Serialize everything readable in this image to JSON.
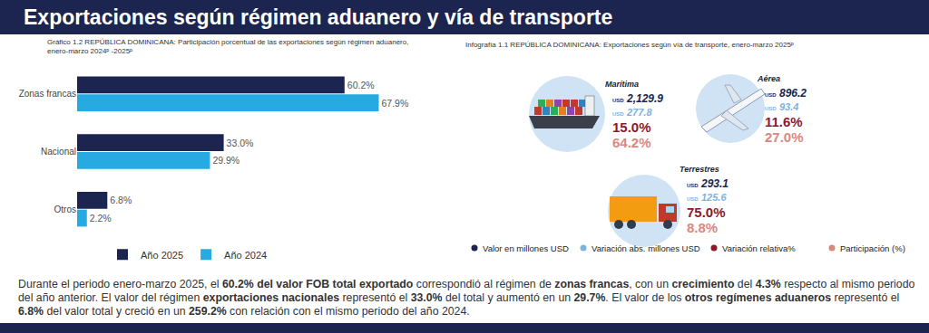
{
  "header": {
    "title": "Exportaciones según régimen aduanero y vía de transporte"
  },
  "chart_data": {
    "type": "bar",
    "title": "Gráfico 1.2 REPÚBLICA DOMINICANA: Participación porcentual de las exportaciones según régimen aduanero, enero-marzo 2024ᵖ -2025ᵖ",
    "orientation": "horizontal",
    "categories": [
      "Zonas francas",
      "Nacional",
      "Otros"
    ],
    "series": [
      {
        "name": "Año 2025",
        "color": "#1b2550",
        "values": [
          60.2,
          33.0,
          6.8
        ],
        "value_labels": [
          "60.2%",
          "33.0%",
          "6.8%"
        ]
      },
      {
        "name": "Año 2024",
        "color": "#27a9e1",
        "values": [
          67.9,
          29.9,
          2.2
        ],
        "value_labels": [
          "67.9%",
          "29.9%",
          "2.2%"
        ]
      }
    ],
    "data_labels": true,
    "tick_labels": "y",
    "legend": "bottom",
    "grid": false
  },
  "infographic": {
    "title": "Infografía 1.1  REPÚBLICA DOMINICANA: Exportaciones según vía de transporte, enero-marzo 2025ᵖ",
    "currency": "USD",
    "modes": [
      {
        "name": "Marítima",
        "value": "2,129.9",
        "abs_change": "277.8",
        "rel_change": "15.0%",
        "share": "64.2%"
      },
      {
        "name": "Aérea",
        "value": "896.2",
        "abs_change": "93.4",
        "rel_change": "11.6%",
        "share": "27.0%"
      },
      {
        "name": "Terrestres",
        "value": "293.1",
        "abs_change": "125.6",
        "rel_change": "75.0%",
        "share": "8.8%"
      }
    ],
    "legend": [
      {
        "label": "Valor en millones USD",
        "color": "#1b2550"
      },
      {
        "label": "Variación abs. millones USD",
        "color": "#7fb2dc"
      },
      {
        "label": "Variación relativa%",
        "color": "#8b1a2b"
      },
      {
        "label": "Participación (%)",
        "color": "#d98880"
      }
    ]
  },
  "paragraph": [
    {
      "text": "Durante el periodo enero-marzo 2025, el ",
      "bold": false
    },
    {
      "text": "60.2% del valor FOB total exportado",
      "bold": true
    },
    {
      "text": " correspondió al régimen de ",
      "bold": false
    },
    {
      "text": "zonas francas",
      "bold": true
    },
    {
      "text": ", con un ",
      "bold": false
    },
    {
      "text": "crecimiento",
      "bold": true
    },
    {
      "text": " del ",
      "bold": false
    },
    {
      "text": "4.3%",
      "bold": true
    },
    {
      "text": " respecto al mismo periodo del año anterior. El valor del régimen ",
      "bold": false
    },
    {
      "text": "exportaciones nacionales",
      "bold": true
    },
    {
      "text": " representó el ",
      "bold": false
    },
    {
      "text": "33.0%",
      "bold": true
    },
    {
      "text": " del total y aumentó en un ",
      "bold": false
    },
    {
      "text": "29.7%",
      "bold": true
    },
    {
      "text": ". El valor de los ",
      "bold": false
    },
    {
      "text": "otros regímenes aduaneros",
      "bold": true
    },
    {
      "text": " representó el ",
      "bold": false
    },
    {
      "text": "6.8%",
      "bold": true
    },
    {
      "text": " del valor total y creció en un ",
      "bold": false
    },
    {
      "text": "259.2%",
      "bold": true
    },
    {
      "text": " con relación con el mismo periodo del año 2024.",
      "bold": false
    }
  ]
}
